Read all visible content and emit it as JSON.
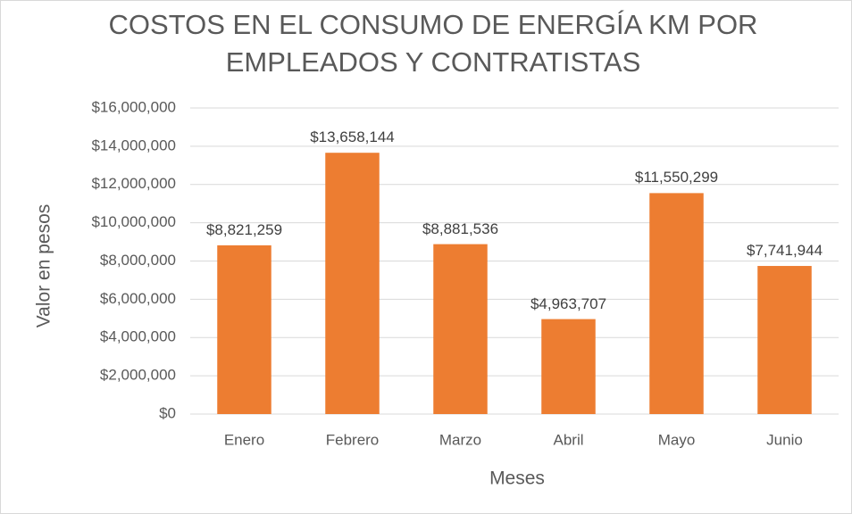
{
  "chart_data": {
    "type": "bar",
    "title": [
      "COSTOS EN EL CONSUMO DE ENERGÍA KM POR",
      "EMPLEADOS Y CONTRATISTAS"
    ],
    "x_label": "Meses",
    "y_label": "Valor en pesos",
    "categories": [
      "Enero",
      "Febrero",
      "Marzo",
      "Abril",
      "Mayo",
      "Junio"
    ],
    "values": [
      8821259,
      13658144,
      8881536,
      4963707,
      11550299,
      7741944
    ],
    "value_labels": [
      "$8,821,259",
      "$13,658,144",
      "$8,881,536",
      "$4,963,707",
      "$11,550,299",
      "$7,741,944"
    ],
    "color": "#ed7d31",
    "ylim": [
      0,
      16000000
    ],
    "yticks": [
      {
        "value": 0,
        "label": "$0"
      },
      {
        "value": 2000000,
        "label": "$2,000,000"
      },
      {
        "value": 4000000,
        "label": "$4,000,000"
      },
      {
        "value": 6000000,
        "label": "$6,000,000"
      },
      {
        "value": 8000000,
        "label": "$8,000,000"
      },
      {
        "value": 10000000,
        "label": "$10,000,000"
      },
      {
        "value": 12000000,
        "label": "$12,000,000"
      },
      {
        "value": 14000000,
        "label": "$14,000,000"
      },
      {
        "value": 16000000,
        "label": "$16,000,000"
      }
    ],
    "grid": true
  }
}
